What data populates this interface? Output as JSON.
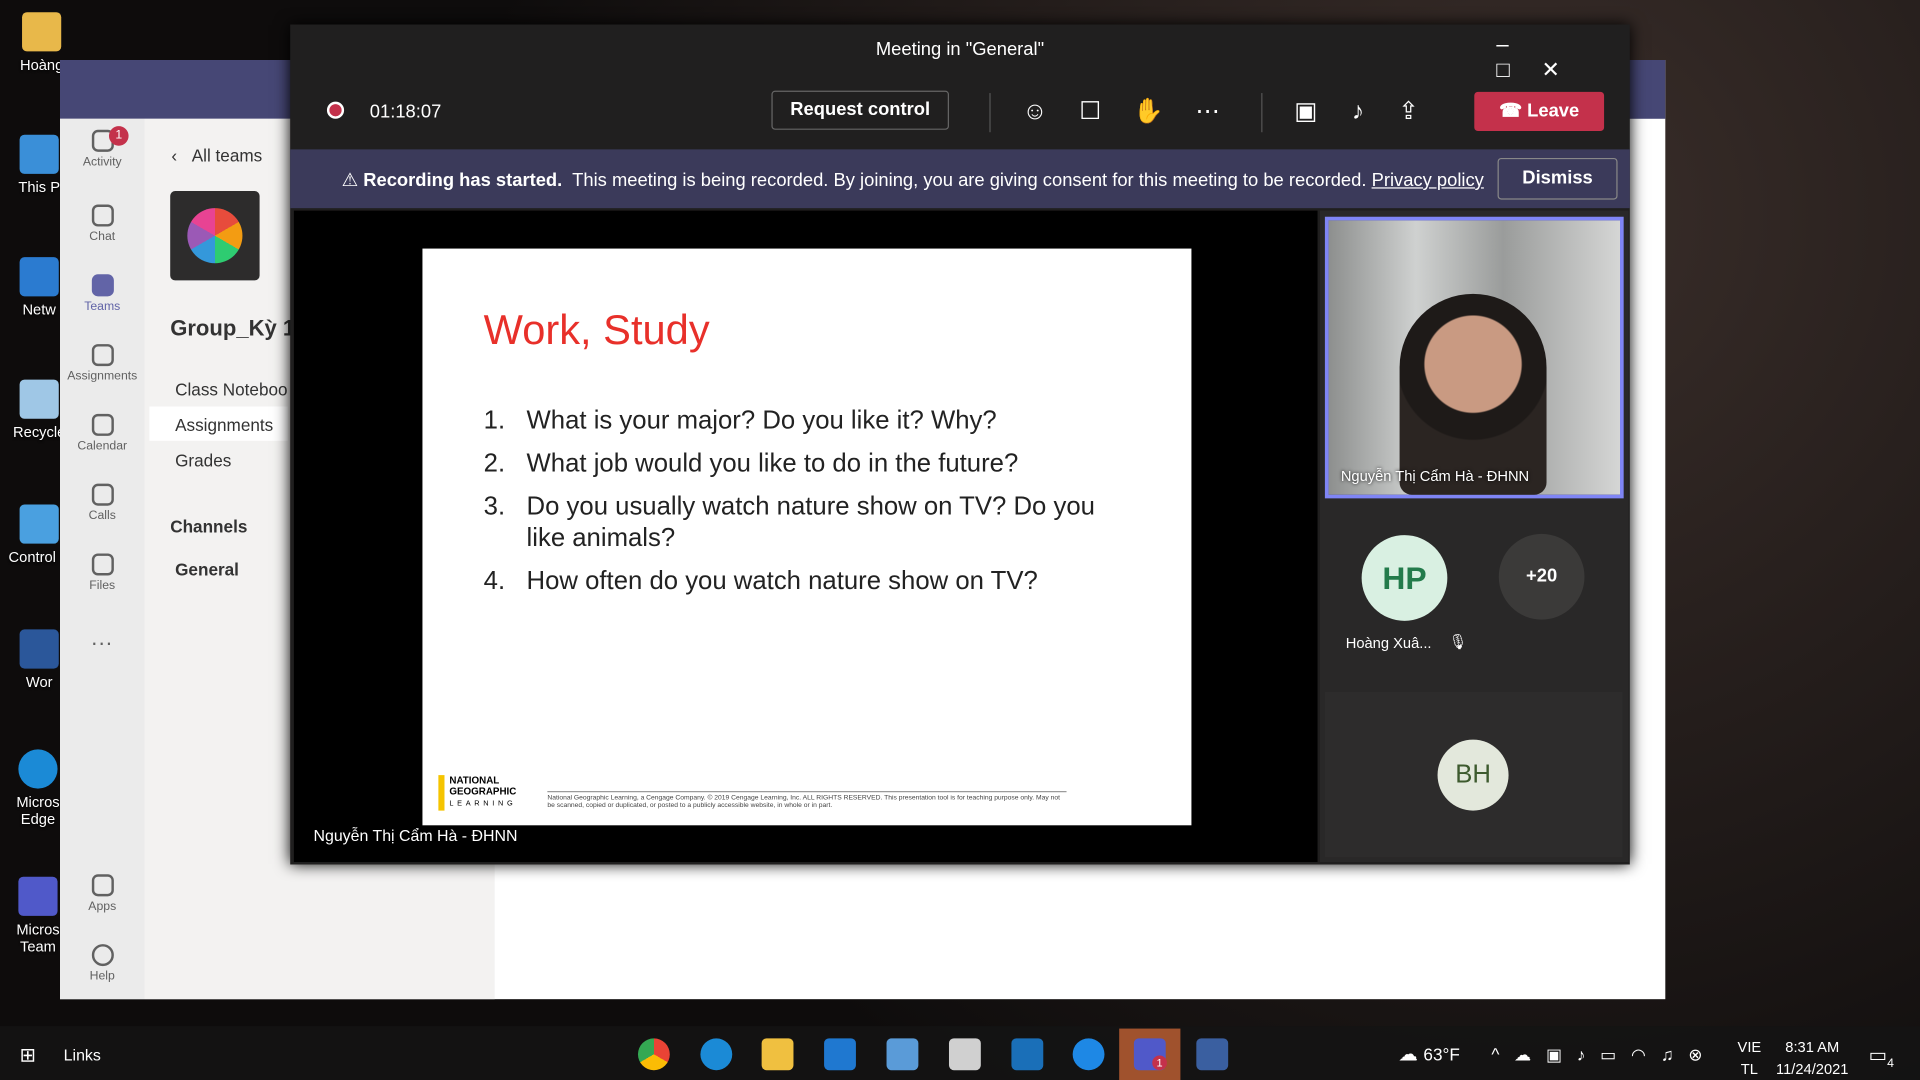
{
  "desktop": {
    "icons": [
      "Hoàng",
      "This P",
      "Netw",
      "Recycle",
      "Control P",
      "Wor",
      "Micros Edge",
      "Micros Team"
    ]
  },
  "teams": {
    "rail": [
      {
        "label": "Activity",
        "badge": "1"
      },
      {
        "label": "Chat"
      },
      {
        "label": "Teams"
      },
      {
        "label": "Assignments"
      },
      {
        "label": "Calendar"
      },
      {
        "label": "Calls"
      },
      {
        "label": "Files"
      }
    ],
    "rail_bottom": [
      "Apps",
      "Help"
    ],
    "panel": {
      "back": "All teams",
      "team_name": "Group_Kỳ 1",
      "tabs": [
        "Class Noteboo",
        "Assignments",
        "Grades"
      ],
      "channels_heading": "Channels",
      "channels": [
        "General"
      ]
    }
  },
  "meeting": {
    "title": "Meeting in \"General\"",
    "timer": "01:18:07",
    "request_control": "Request control",
    "leave": "Leave",
    "banner": {
      "bold": "Recording has started.",
      "text": "This meeting is being recorded. By joining, you are giving consent for this meeting to be recorded.",
      "link": "Privacy policy",
      "dismiss": "Dismiss"
    },
    "slide": {
      "title": "Work, Study",
      "questions": [
        {
          "num": "1.",
          "text": "What is your major? Do you like it? Why?"
        },
        {
          "num": "2.",
          "text": "What job would you like to do in the future?"
        },
        {
          "num": "3.",
          "text": "Do you usually watch nature show on TV? Do you like animals?"
        },
        {
          "num": "4.",
          "text": "How often do you watch nature show on TV?"
        }
      ],
      "logo": "NATIONAL GEOGRAPHIC",
      "logo_sub": "LEARNING",
      "copyright": "National Geographic Learning, a Cengage Company. © 2019 Cengage Learning, Inc. ALL RIGHTS RESERVED. This presentation tool is for teaching purpose only. May not be scanned, copied or duplicated, or posted to a publicly accessible website, in whole or in part."
    },
    "presenter": "Nguyễn Thị Cẩm Hà - ĐHNN",
    "video_name": "Nguyễn Thị Cẩm Hà - ĐHNN",
    "participants": [
      {
        "initials": "HP",
        "name": "Hoàng Xuâ..."
      },
      {
        "initials": "+20"
      },
      {
        "initials": "BH"
      }
    ]
  },
  "taskbar": {
    "links": "Links",
    "teams_badge": "1",
    "weather": "63°F",
    "lang": "VIE",
    "lang2": "TL",
    "time": "8:31 AM",
    "date": "11/24/2021",
    "notifications": "4"
  }
}
